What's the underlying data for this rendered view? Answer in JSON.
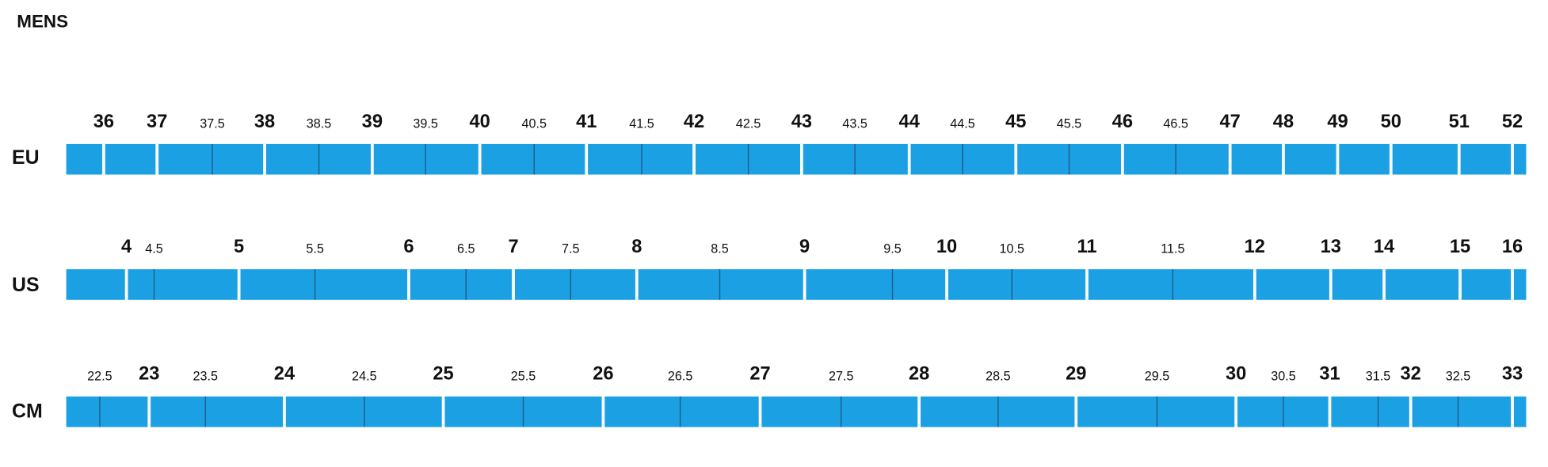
{
  "title": "MENS",
  "rows": [
    {
      "label": "EU",
      "ticks": [
        "36",
        "37",
        "37.5",
        "38",
        "38.5",
        "39",
        "39.5",
        "40",
        "40.5",
        "41",
        "41.5",
        "42",
        "42.5",
        "43",
        "43.5",
        "44",
        "44.5",
        "45",
        "45.5",
        "46",
        "46.5",
        "47",
        "48",
        "49",
        "50",
        "51",
        "52"
      ]
    },
    {
      "label": "US",
      "ticks": [
        "4",
        "4.5",
        "5",
        "5.5",
        "6",
        "6.5",
        "7",
        "7.5",
        "8",
        "8.5",
        "9",
        "9.5",
        "10",
        "10.5",
        "11",
        "11.5",
        "12",
        "13",
        "14",
        "15",
        "16"
      ]
    },
    {
      "label": "CM",
      "ticks": [
        "22.5",
        "23",
        "23.5",
        "24",
        "24.5",
        "25",
        "25.5",
        "26",
        "26.5",
        "27",
        "27.5",
        "28",
        "28.5",
        "29",
        "29.5",
        "30",
        "30.5",
        "31",
        "31.5",
        "32",
        "32.5",
        "33"
      ]
    }
  ]
}
